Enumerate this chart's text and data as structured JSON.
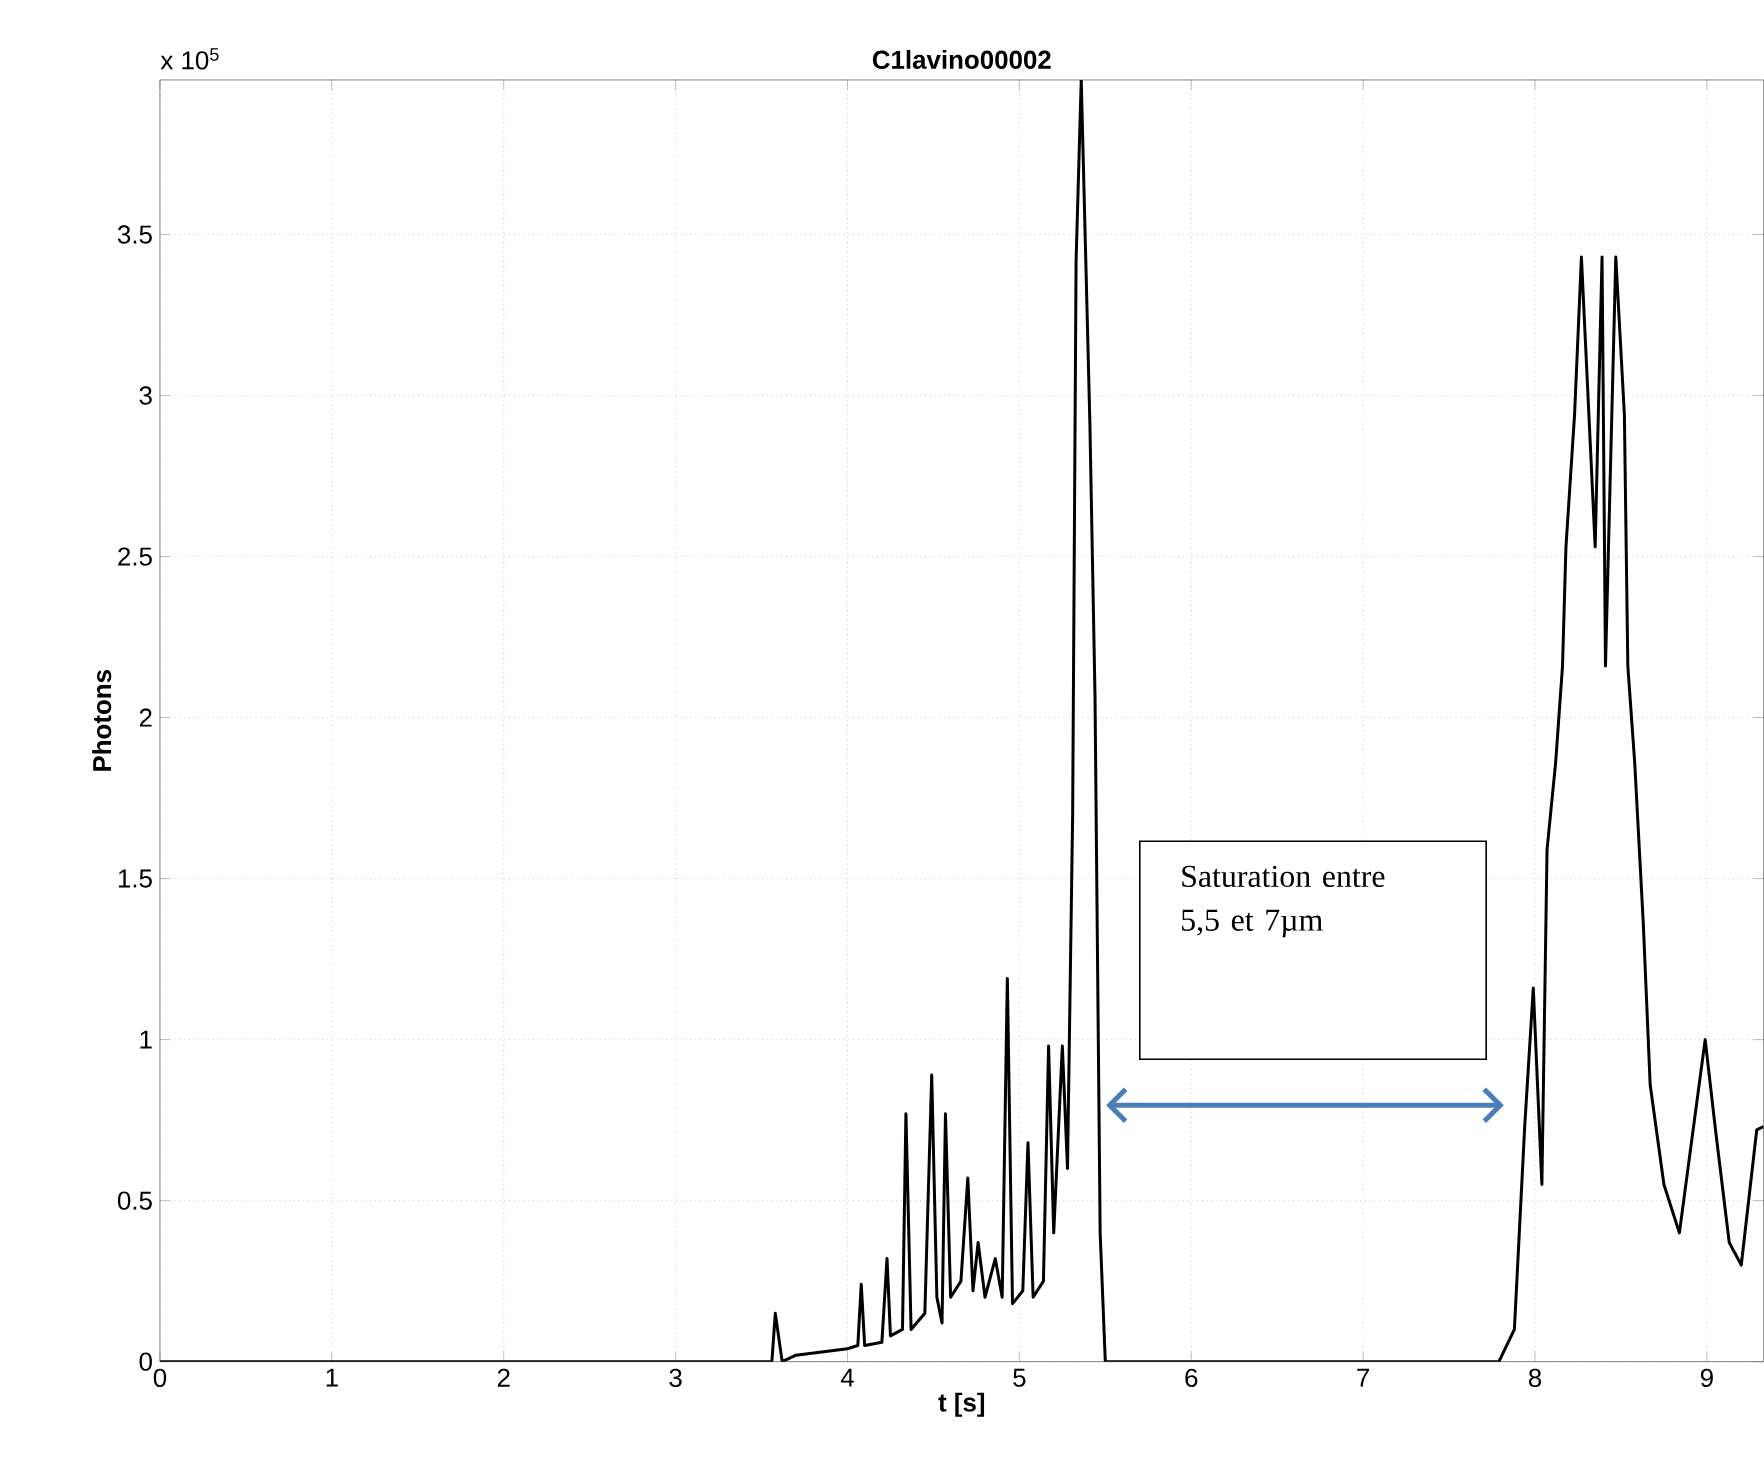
{
  "chart_data": {
    "type": "line",
    "title": "C1lavino00002",
    "xlabel": "t [s]",
    "ylabel": "Photons",
    "x": [
      0,
      3.5,
      3.56,
      3.58,
      3.62,
      3.7,
      4.0,
      4.06,
      4.08,
      4.1,
      4.2,
      4.23,
      4.25,
      4.32,
      4.34,
      4.37,
      4.45,
      4.49,
      4.52,
      4.55,
      4.57,
      4.6,
      4.66,
      4.7,
      4.73,
      4.76,
      4.8,
      4.86,
      4.9,
      4.93,
      4.96,
      5.02,
      5.05,
      5.08,
      5.14,
      5.17,
      5.2,
      5.25,
      5.28,
      5.31,
      5.33,
      5.36,
      5.41,
      5.44,
      5.47,
      5.5,
      5.55,
      7.79,
      7.88,
      7.94,
      7.99,
      8.04,
      8.07,
      8.12,
      8.16,
      8.18,
      8.23,
      8.27,
      8.35,
      8.39,
      8.41,
      8.47,
      8.52,
      8.54,
      8.58,
      8.63,
      8.67,
      8.75,
      8.84,
      8.9,
      8.99,
      9.05,
      9.13,
      9.2,
      9.29,
      9.33
    ],
    "series": [
      {
        "color": "#000000",
        "values": [
          0,
          0,
          0,
          0.15,
          0,
          0.02,
          0.04,
          0.05,
          0.24,
          0.05,
          0.06,
          0.32,
          0.08,
          0.1,
          0.77,
          0.1,
          0.15,
          0.89,
          0.2,
          0.12,
          0.77,
          0.2,
          0.25,
          0.57,
          0.22,
          0.37,
          0.2,
          0.32,
          0.2,
          1.19,
          0.18,
          0.22,
          0.68,
          0.2,
          0.25,
          0.98,
          0.4,
          0.98,
          0.6,
          1.7,
          3.42,
          3.98,
          2.92,
          2.07,
          0.4,
          0,
          0,
          0,
          0.1,
          0.73,
          1.16,
          0.55,
          1.59,
          1.86,
          2.16,
          2.53,
          2.94,
          3.43,
          2.53,
          3.43,
          2.16,
          3.43,
          2.94,
          2.16,
          1.86,
          1.36,
          0.86,
          0.55,
          0.4,
          0.64,
          1.0,
          0.72,
          0.37,
          0.3,
          0.72,
          0.73
        ]
      }
    ],
    "xlim": [
      0,
      9.33
    ],
    "ylim": [
      0,
      3.98
    ],
    "xticks": [
      0,
      1,
      2,
      3,
      4,
      5,
      6,
      7,
      8,
      9
    ],
    "yticks": [
      0,
      0.5,
      1,
      1.5,
      2,
      2.5,
      3,
      3.5
    ],
    "grid": true,
    "annotations": [
      "x 10$^{5}$",
      "Saturation entre 5,5 et 7µm"
    ]
  }
}
